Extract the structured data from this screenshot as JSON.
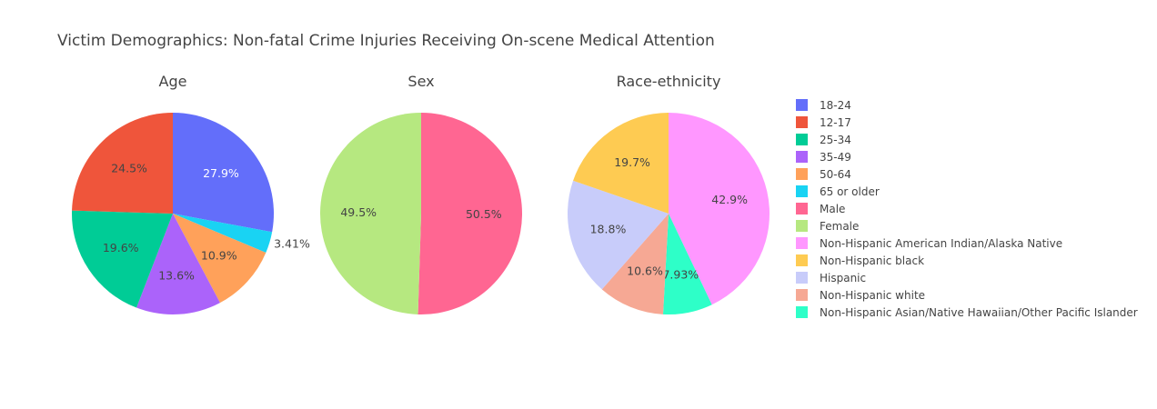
{
  "chart_data": {
    "type": "pie",
    "title": "Victim Demographics: Non-fatal Crime Injuries Receiving On-scene Medical Attention",
    "legend_position": "right",
    "charts": [
      {
        "title": "Age",
        "slices": [
          {
            "label": "18-24",
            "value": 27.9,
            "text": "27.9%",
            "color": "#636efa",
            "text_color": "#ffffff"
          },
          {
            "label": "65 or older",
            "value": 3.41,
            "text": "3.41%",
            "color": "#19d3f3",
            "text_color": "#444444"
          },
          {
            "label": "50-64",
            "value": 10.9,
            "text": "10.9%",
            "color": "#ffa15a",
            "text_color": "#444444"
          },
          {
            "label": "35-49",
            "value": 13.6,
            "text": "13.6%",
            "color": "#ab63fa",
            "text_color": "#444444"
          },
          {
            "label": "25-34",
            "value": 19.6,
            "text": "19.6%",
            "color": "#00cc96",
            "text_color": "#444444"
          },
          {
            "label": "12-17",
            "value": 24.5,
            "text": "24.5%",
            "color": "#ef553b",
            "text_color": "#444444"
          }
        ]
      },
      {
        "title": "Sex",
        "slices": [
          {
            "label": "Male",
            "value": 50.5,
            "text": "50.5%",
            "color": "#ff6692",
            "text_color": "#444444"
          },
          {
            "label": "Female",
            "value": 49.5,
            "text": "49.5%",
            "color": "#b6e880",
            "text_color": "#444444"
          }
        ]
      },
      {
        "title": "Race-ethnicity",
        "slices": [
          {
            "label": "Non-Hispanic American Indian/Alaska Native",
            "value": 42.9,
            "text": "42.9%",
            "color": "#ff97ff",
            "text_color": "#444444"
          },
          {
            "label": "Non-Hispanic Asian/Native Hawaiian/Other Pacific Islander",
            "value": 7.93,
            "text": "7.93%",
            "color": "#2effc8",
            "text_color": "#444444"
          },
          {
            "label": "Non-Hispanic white",
            "value": 10.6,
            "text": "10.6%",
            "color": "#f6a894",
            "text_color": "#444444"
          },
          {
            "label": "Hispanic",
            "value": 18.8,
            "text": "18.8%",
            "color": "#c8ccfa",
            "text_color": "#444444"
          },
          {
            "label": "Non-Hispanic black",
            "value": 19.7,
            "text": "19.7%",
            "color": "#fecb52",
            "text_color": "#444444"
          }
        ]
      }
    ],
    "legend": [
      {
        "label": "18-24",
        "color": "#636efa"
      },
      {
        "label": "12-17",
        "color": "#ef553b"
      },
      {
        "label": "25-34",
        "color": "#00cc96"
      },
      {
        "label": "35-49",
        "color": "#ab63fa"
      },
      {
        "label": "50-64",
        "color": "#ffa15a"
      },
      {
        "label": "65 or older",
        "color": "#19d3f3"
      },
      {
        "label": "Male",
        "color": "#ff6692"
      },
      {
        "label": "Female",
        "color": "#b6e880"
      },
      {
        "label": "Non-Hispanic American Indian/Alaska Native",
        "color": "#ff97ff"
      },
      {
        "label": "Non-Hispanic black",
        "color": "#fecb52"
      },
      {
        "label": "Hispanic",
        "color": "#c8ccfa"
      },
      {
        "label": "Non-Hispanic white",
        "color": "#f6a894"
      },
      {
        "label": "Non-Hispanic Asian/Native Hawaiian/Other Pacific Islander",
        "color": "#2effc8"
      }
    ]
  }
}
